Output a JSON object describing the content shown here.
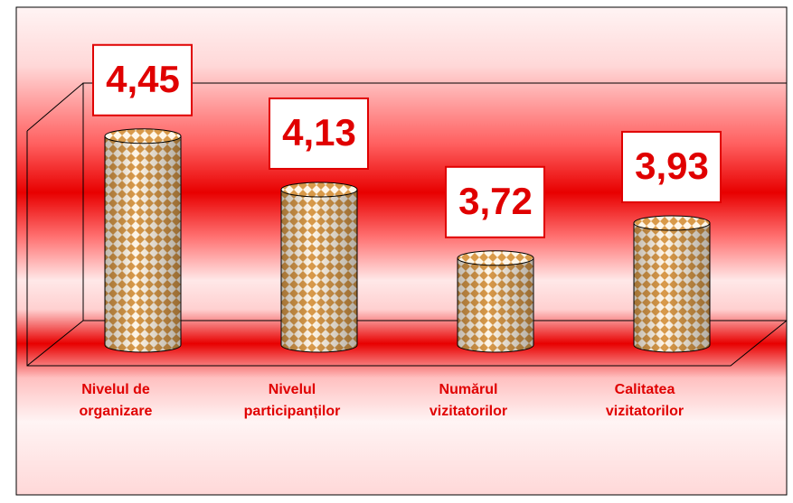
{
  "chart_data": {
    "type": "bar",
    "categories": [
      [
        "Nivelul de",
        "organizare"
      ],
      [
        "Nivelul",
        "participanților"
      ],
      [
        "Numărul",
        "vizitatorilor"
      ],
      [
        "Calitatea",
        "vizitatorilor"
      ]
    ],
    "values": [
      4.45,
      4.13,
      3.72,
      3.93
    ],
    "value_labels": [
      "4,45",
      "4,13",
      "3,72",
      "3,93"
    ],
    "ylim": [
      3.2,
      4.8
    ]
  }
}
